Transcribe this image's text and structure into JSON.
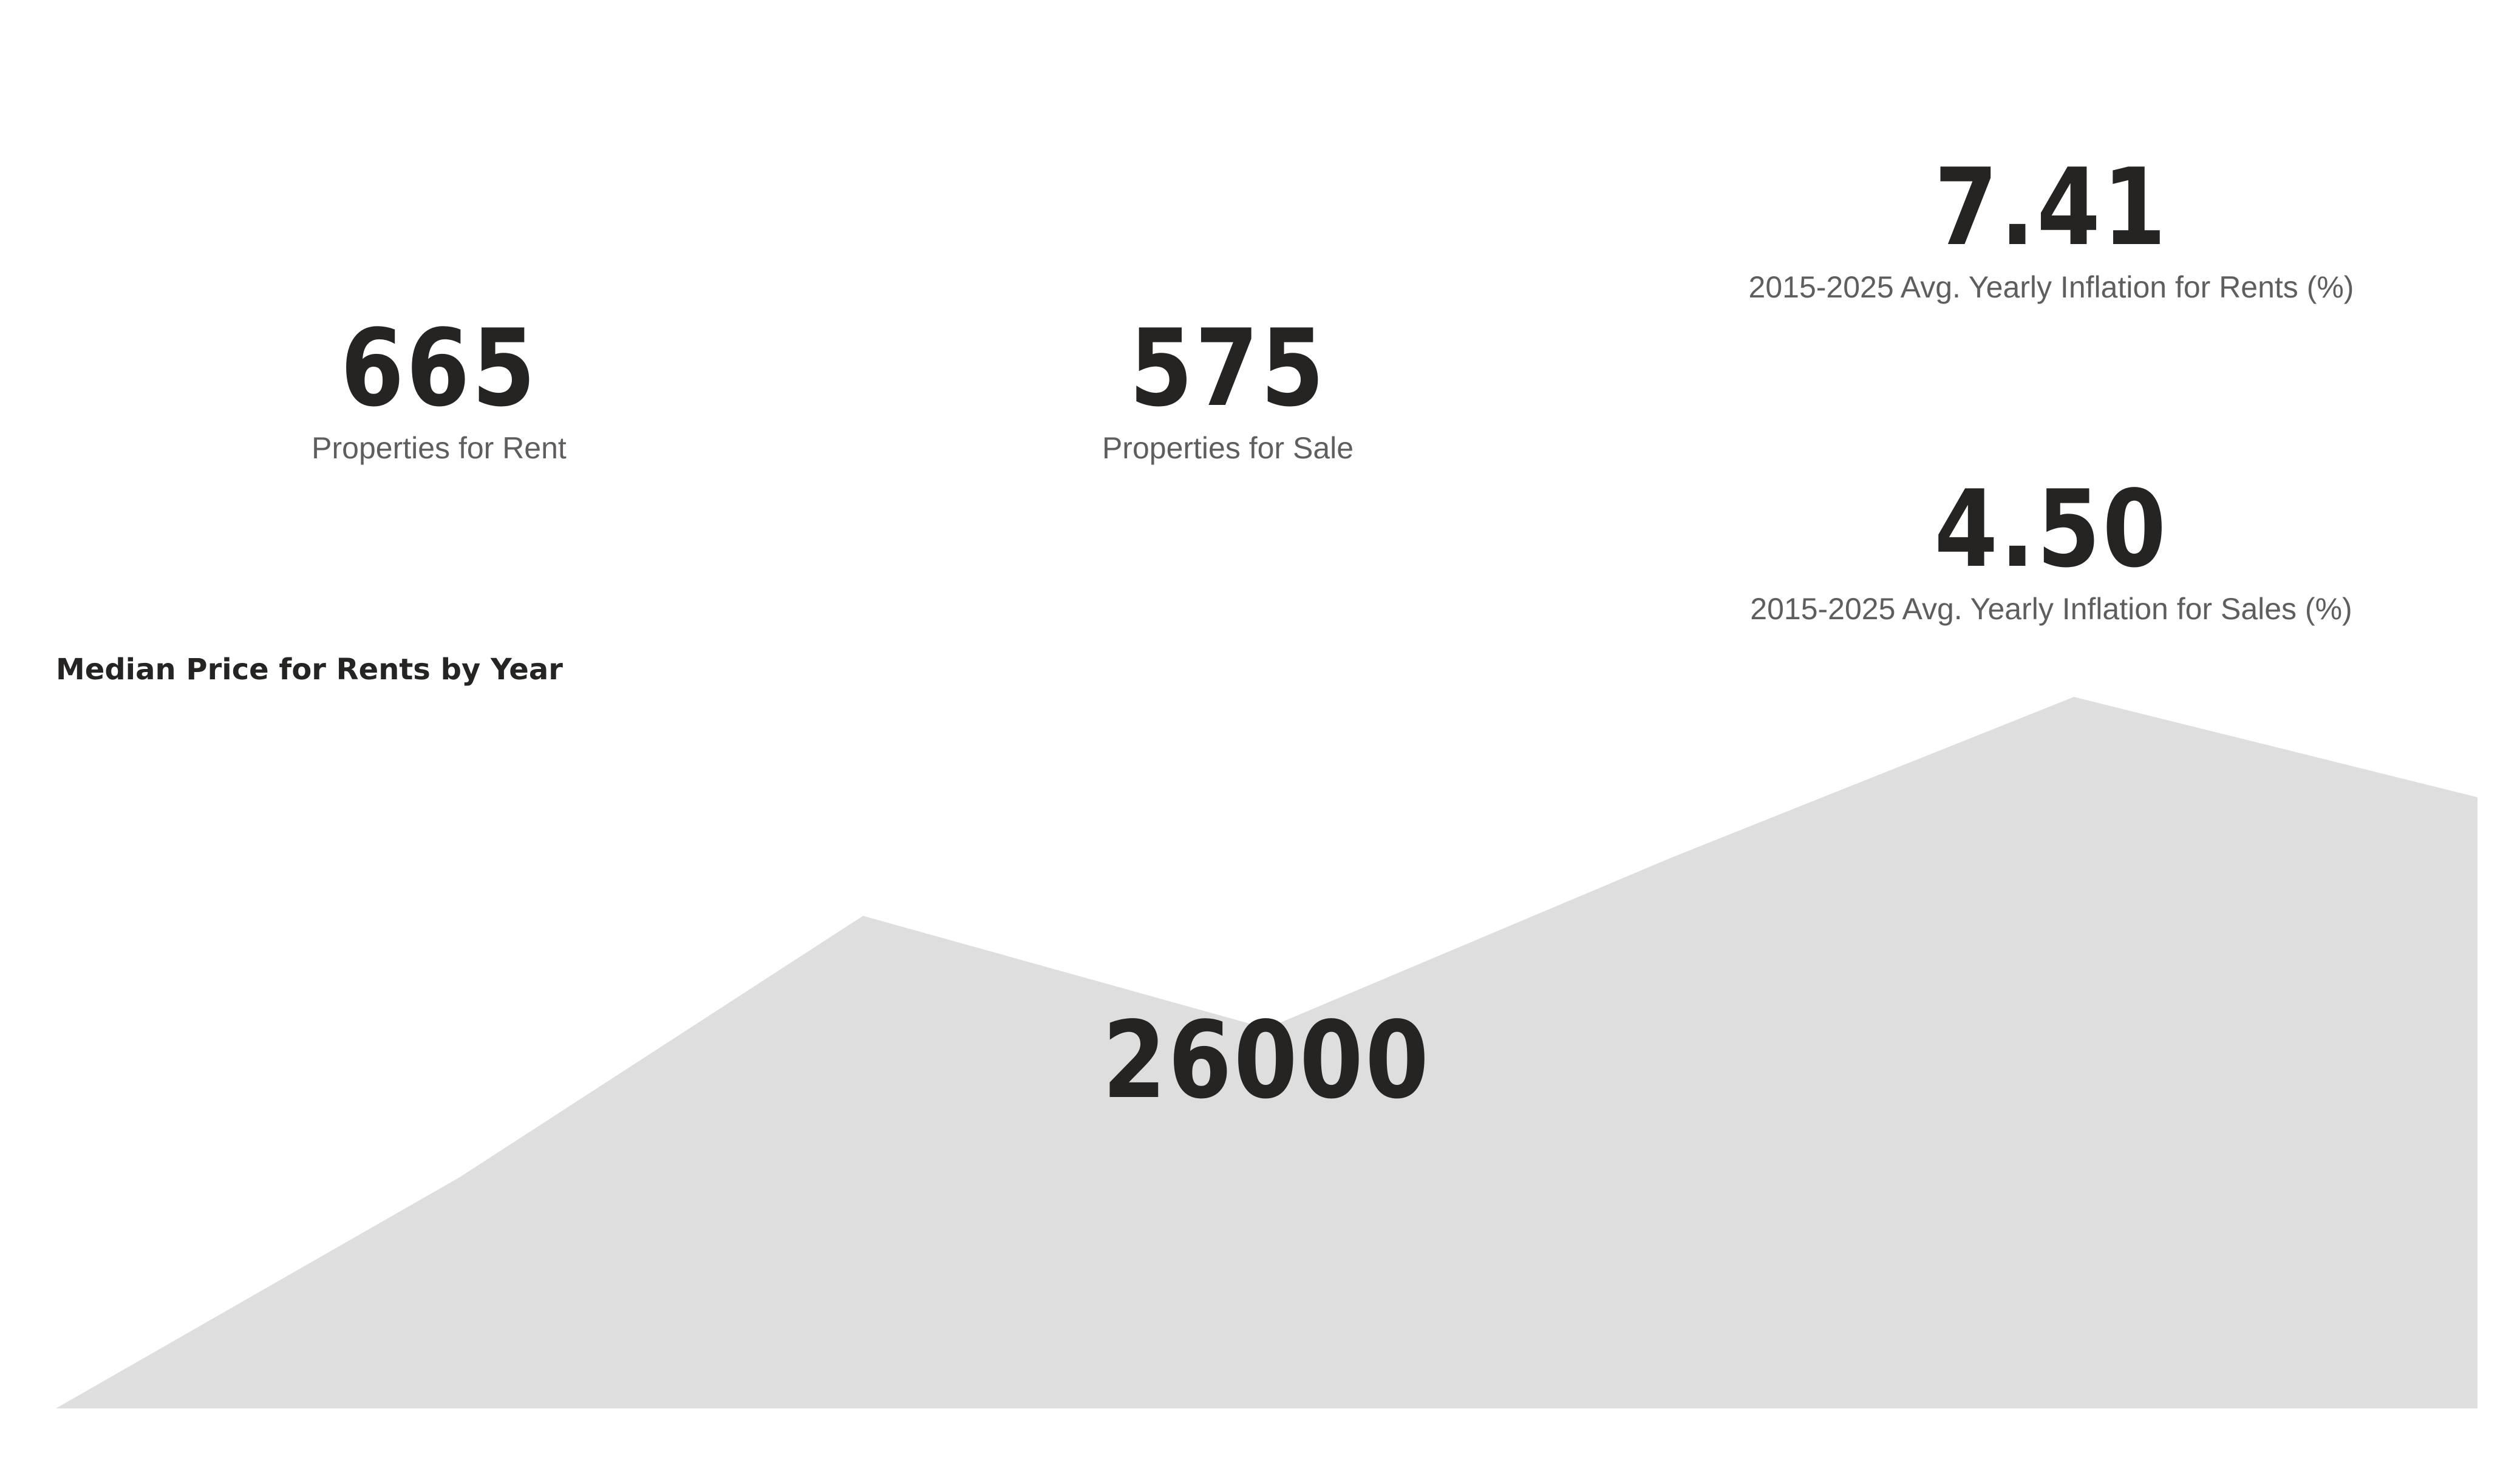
{
  "kpis": {
    "rent_count": {
      "value": "665",
      "label": "Properties for Rent"
    },
    "sale_count": {
      "value": "575",
      "label": "Properties for Sale"
    },
    "rent_inflation": {
      "value": "7.41",
      "label": "2015-2025 Avg. Yearly Inflation for Rents (%)"
    },
    "sale_inflation": {
      "value": "4.50",
      "label": "2015-2025 Avg. Yearly Inflation for Sales (%)"
    }
  },
  "chart_data": {
    "type": "area",
    "title": "Median Price for Rents by Year",
    "overlay_value": "26000",
    "x": [
      0,
      1,
      2,
      3,
      4,
      5,
      6
    ],
    "values": [
      0,
      380,
      810,
      625,
      905,
      1170,
      1005
    ],
    "ylim": [
      0,
      1170
    ],
    "fill_color": "#dedede",
    "grid": false,
    "legend": "none"
  }
}
